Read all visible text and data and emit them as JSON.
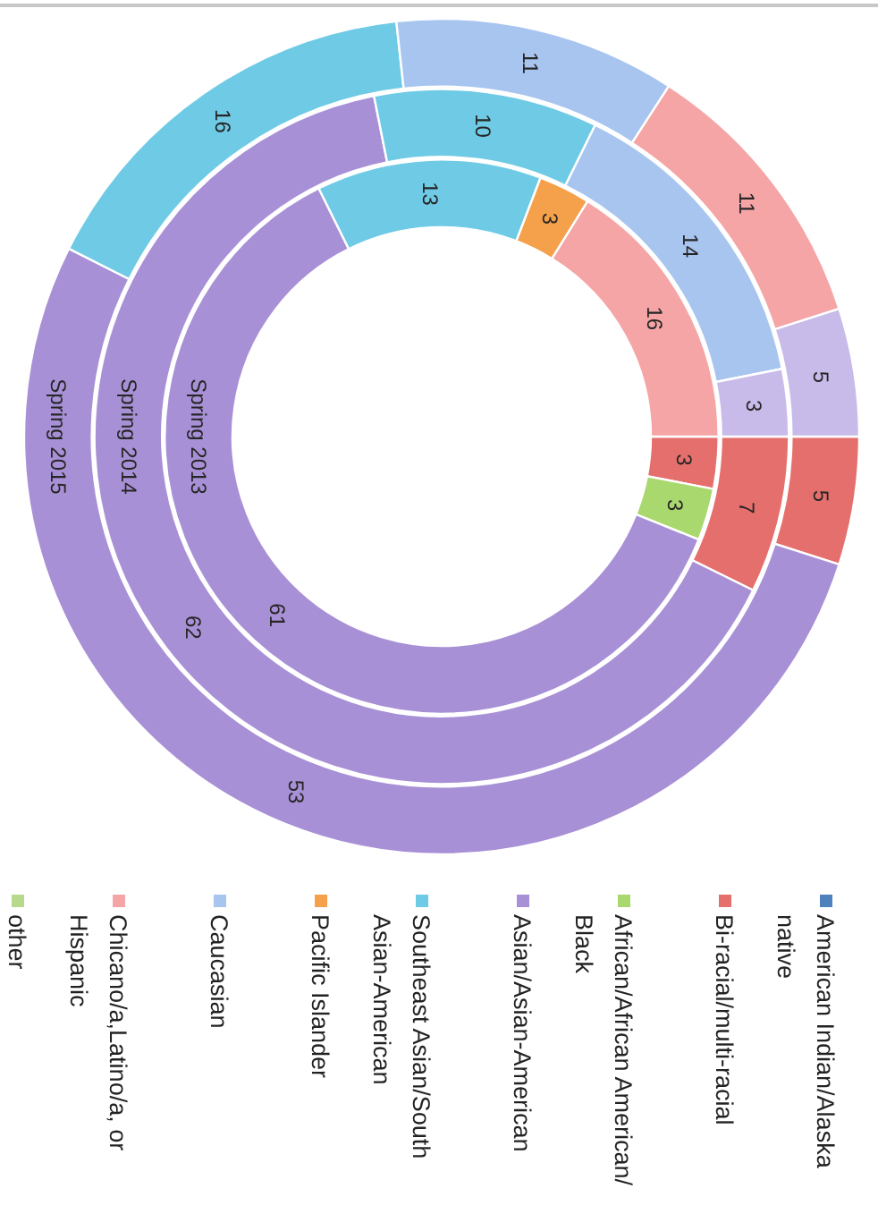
{
  "chart_data": {
    "type": "donut",
    "categories": [
      "American Indian/Alaska native",
      "Bi-racial/multi-racial",
      "African/African American/Black",
      "Asian/Asian-American",
      "Southeast Asian/South Asian-American",
      "Pacific Islander",
      "Caucasian",
      "Chicano/a,Latino/a, or Hispanic",
      "other",
      null
    ],
    "colors": [
      "#4f81bd",
      "#e56f6c",
      "#a9d86e",
      "#a890d6",
      "#6fcbe5",
      "#f5a04a",
      "#a8c5f0",
      "#f5a5a5",
      "#b8d98c",
      "#c8bbea"
    ],
    "series": [
      {
        "name": "Spring 2013",
        "values": [
          null,
          3,
          3,
          61,
          13,
          3,
          null,
          16,
          null,
          null
        ]
      },
      {
        "name": "Spring 2014",
        "values": [
          null,
          7,
          null,
          62,
          10,
          null,
          14,
          null,
          null,
          3
        ]
      },
      {
        "name": "Spring 2015",
        "values": [
          null,
          5,
          null,
          53,
          16,
          null,
          11,
          11,
          null,
          5
        ]
      }
    ],
    "data_labels": true,
    "legend": "bottom"
  }
}
